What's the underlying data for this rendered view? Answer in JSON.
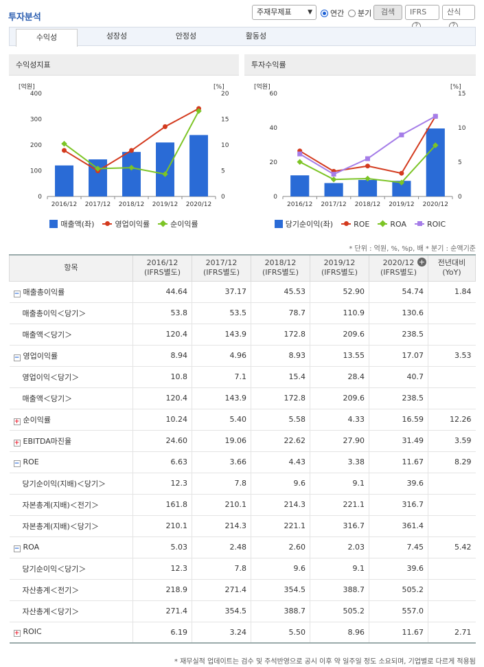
{
  "header": {
    "title": "투자분석",
    "select_value": "주재무제표",
    "radio_annual": "연간",
    "radio_quarter": "분기",
    "search_label": "검색",
    "ifrs_label": "IFRS",
    "formula_label": "산식",
    "help_glyph": "?"
  },
  "tabs": [
    "수익성",
    "성장성",
    "안정성",
    "활동성"
  ],
  "left_panel": {
    "title": "수익성지표",
    "legend": [
      "매출액(좌)",
      "영업이익률",
      "순이익률"
    ]
  },
  "right_panel": {
    "title": "투자수익률",
    "legend": [
      "당기순이익(좌)",
      "ROE",
      "ROA",
      "ROIC"
    ]
  },
  "chart_data": [
    {
      "type": "bar",
      "title": "수익성지표",
      "categories": [
        "2016/12",
        "2017/12",
        "2018/12",
        "2019/12",
        "2020/12"
      ],
      "left_unit": "[억원]",
      "right_unit": "[%]",
      "ylim_left": [
        0,
        400
      ],
      "ylim_right": [
        0,
        20
      ],
      "yticks_left": [
        0,
        100,
        200,
        300,
        400
      ],
      "yticks_right": [
        0,
        5,
        10,
        15,
        20
      ],
      "series": [
        {
          "name": "매출액(좌)",
          "type": "bar",
          "axis": "left",
          "color": "#2a6bd6",
          "values": [
            120.4,
            143.9,
            172.8,
            209.6,
            238.5
          ]
        },
        {
          "name": "영업이익률",
          "type": "line",
          "axis": "right",
          "color": "#d33a1e",
          "values": [
            8.94,
            4.96,
            8.93,
            13.55,
            17.07
          ]
        },
        {
          "name": "순이익률",
          "type": "line",
          "axis": "right",
          "color": "#7cc425",
          "values": [
            10.24,
            5.4,
            5.58,
            4.33,
            16.59
          ]
        }
      ]
    },
    {
      "type": "bar",
      "title": "투자수익률",
      "categories": [
        "2016/12",
        "2017/12",
        "2018/12",
        "2019/12",
        "2020/12"
      ],
      "left_unit": "[억원]",
      "right_unit": "[%]",
      "ylim_left": [
        0,
        60
      ],
      "ylim_right": [
        0,
        15
      ],
      "yticks_left": [
        0,
        20,
        40,
        60
      ],
      "yticks_right": [
        0,
        5,
        10,
        15
      ],
      "series": [
        {
          "name": "당기순이익(좌)",
          "type": "bar",
          "axis": "left",
          "color": "#2a6bd6",
          "values": [
            12.3,
            7.8,
            9.6,
            9.1,
            39.6
          ]
        },
        {
          "name": "ROE",
          "type": "line",
          "axis": "right",
          "color": "#d33a1e",
          "values": [
            6.63,
            3.66,
            4.43,
            3.38,
            11.67
          ]
        },
        {
          "name": "ROA",
          "type": "line",
          "axis": "right",
          "color": "#7cc425",
          "values": [
            5.03,
            2.48,
            2.6,
            2.03,
            7.45
          ]
        },
        {
          "name": "ROIC",
          "type": "line",
          "axis": "right",
          "color": "#a57de8",
          "values": [
            6.19,
            3.24,
            5.5,
            8.96,
            11.67
          ]
        }
      ]
    }
  ],
  "unit_note": "* 단위 : 억원, %, %p, 배   * 분기 : 순액기준",
  "table": {
    "head_item": "항목",
    "columns": [
      "2016/12\n(IFRS별도)",
      "2017/12\n(IFRS별도)",
      "2018/12\n(IFRS별도)",
      "2019/12\n(IFRS별도)",
      "2020/12\n(IFRS별도)",
      "전년대비\n(YoY)"
    ],
    "plus_glyph": "+",
    "rows": [
      {
        "label": "매출총이익률",
        "kind": "minus",
        "values": [
          "44.64",
          "37.17",
          "45.53",
          "52.90",
          "54.74",
          "1.84"
        ]
      },
      {
        "label": "매출총이익＜당기＞",
        "kind": "sub",
        "values": [
          "53.8",
          "53.5",
          "78.7",
          "110.9",
          "130.6",
          ""
        ]
      },
      {
        "label": "매출액＜당기＞",
        "kind": "sub",
        "values": [
          "120.4",
          "143.9",
          "172.8",
          "209.6",
          "238.5",
          ""
        ]
      },
      {
        "label": "영업이익률",
        "kind": "minus",
        "values": [
          "8.94",
          "4.96",
          "8.93",
          "13.55",
          "17.07",
          "3.53"
        ]
      },
      {
        "label": "영업이익＜당기＞",
        "kind": "sub",
        "values": [
          "10.8",
          "7.1",
          "15.4",
          "28.4",
          "40.7",
          ""
        ]
      },
      {
        "label": "매출액＜당기＞",
        "kind": "sub",
        "values": [
          "120.4",
          "143.9",
          "172.8",
          "209.6",
          "238.5",
          ""
        ]
      },
      {
        "label": "순이익률",
        "kind": "plus",
        "values": [
          "10.24",
          "5.40",
          "5.58",
          "4.33",
          "16.59",
          "12.26"
        ]
      },
      {
        "label": "EBITDA마진율",
        "kind": "plus",
        "values": [
          "24.60",
          "19.06",
          "22.62",
          "27.90",
          "31.49",
          "3.59"
        ]
      },
      {
        "label": "ROE",
        "kind": "minus",
        "values": [
          "6.63",
          "3.66",
          "4.43",
          "3.38",
          "11.67",
          "8.29"
        ]
      },
      {
        "label": "당기순이익(지배)＜당기＞",
        "kind": "sub",
        "values": [
          "12.3",
          "7.8",
          "9.6",
          "9.1",
          "39.6",
          ""
        ]
      },
      {
        "label": "자본총계(지배)＜전기＞",
        "kind": "sub",
        "values": [
          "161.8",
          "210.1",
          "214.3",
          "221.1",
          "316.7",
          ""
        ]
      },
      {
        "label": "자본총계(지배)＜당기＞",
        "kind": "sub",
        "values": [
          "210.1",
          "214.3",
          "221.1",
          "316.7",
          "361.4",
          ""
        ]
      },
      {
        "label": "ROA",
        "kind": "minus",
        "values": [
          "5.03",
          "2.48",
          "2.60",
          "2.03",
          "7.45",
          "5.42"
        ]
      },
      {
        "label": "당기순이익＜당기＞",
        "kind": "sub",
        "values": [
          "12.3",
          "7.8",
          "9.6",
          "9.1",
          "39.6",
          ""
        ]
      },
      {
        "label": "자산총계＜전기＞",
        "kind": "sub",
        "values": [
          "218.9",
          "271.4",
          "354.5",
          "388.7",
          "505.2",
          ""
        ]
      },
      {
        "label": "자산총계＜당기＞",
        "kind": "sub",
        "values": [
          "271.4",
          "354.5",
          "388.7",
          "505.2",
          "557.0",
          ""
        ]
      },
      {
        "label": "ROIC",
        "kind": "plus",
        "values": [
          "6.19",
          "3.24",
          "5.50",
          "8.96",
          "11.67",
          "2.71"
        ]
      }
    ]
  },
  "footer": "* 재무실적 업데이트는 검수 및 주석반영으로 공시 이후 약 일주일 정도 소요되며, 기업별로 다르게 적용됨"
}
